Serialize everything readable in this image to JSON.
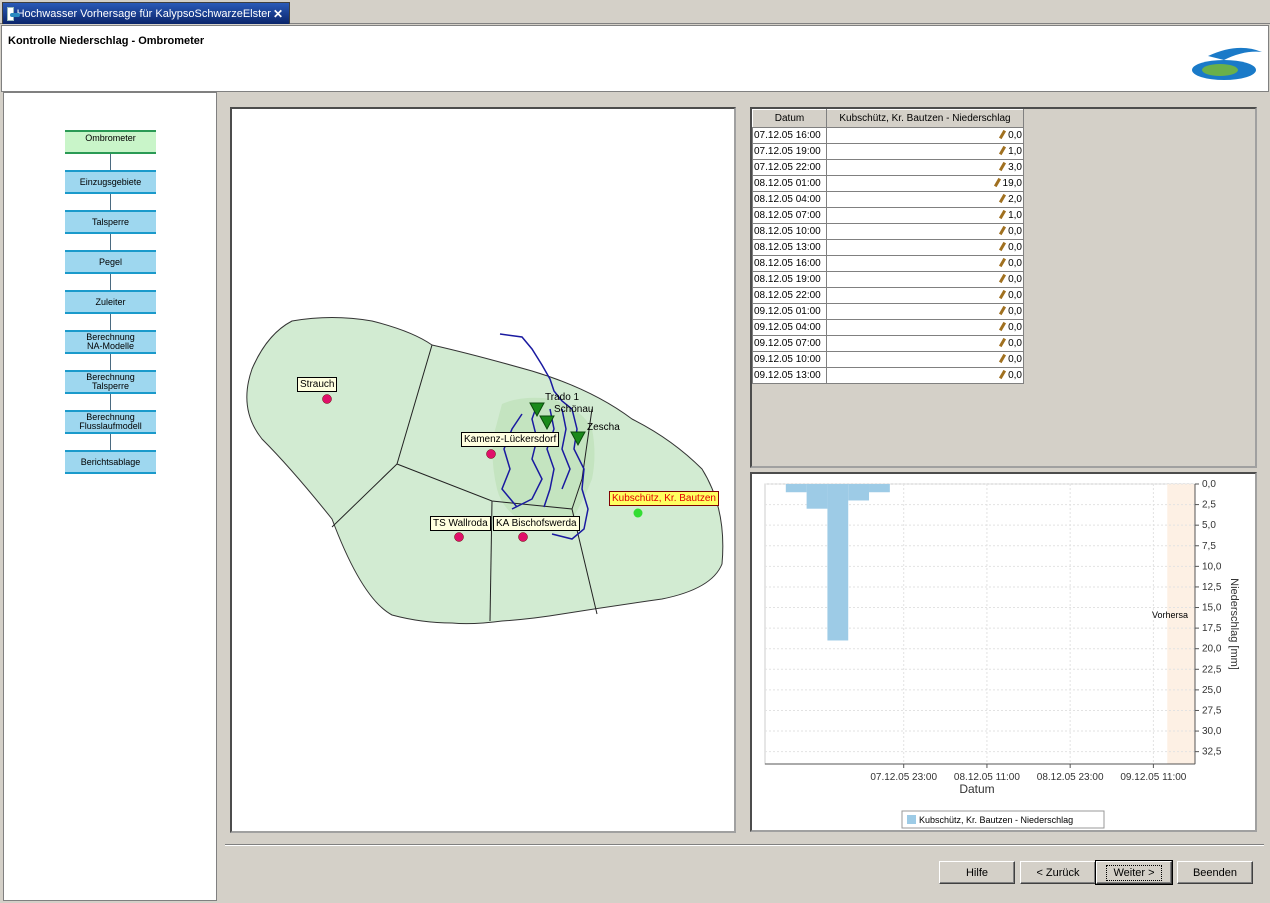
{
  "window": {
    "tab_title": "Hochwasser Vorhersage für KalypsoSchwarzeElster",
    "tab_icon": "app-icon",
    "close_icon": "close-icon"
  },
  "header": {
    "page_title": "Kontrolle Niederschlag - Ombrometer",
    "logo_icon": "wave-logo-icon"
  },
  "workflow": {
    "steps": [
      {
        "label_1": "Ombrometer",
        "label_2": "",
        "active": true
      },
      {
        "label_1": "Einzugsgebiete",
        "label_2": "",
        "active": false
      },
      {
        "label_1": "Talsperre",
        "label_2": "",
        "active": false
      },
      {
        "label_1": "Pegel",
        "label_2": "",
        "active": false
      },
      {
        "label_1": "Zuleiter",
        "label_2": "",
        "active": false
      },
      {
        "label_1": "Berechnung",
        "label_2": "NA-Modelle",
        "active": false
      },
      {
        "label_1": "Berechnung",
        "label_2": "Talsperre",
        "active": false
      },
      {
        "label_1": "Berechnung",
        "label_2": "Flusslaufmodell",
        "active": false
      },
      {
        "label_1": "Berichtsablage",
        "label_2": "",
        "active": false
      }
    ]
  },
  "map": {
    "stations": [
      {
        "name": "Strauch",
        "selected": false
      },
      {
        "name": "Kamenz-Lückersdorf",
        "selected": false
      },
      {
        "name": "TS Wallroda",
        "selected": false
      },
      {
        "name": "KA Bischofswerda",
        "selected": false
      },
      {
        "name": "Kubschütz, Kr. Bautzen",
        "selected": true
      }
    ],
    "gauges": [
      "Trado 1",
      "Schönau",
      "Zescha"
    ],
    "colors": {
      "catchment_fill": "#d2ebd2",
      "station": "#e0106a",
      "selected_station": "#33dd33",
      "gauge": "#1a8a1a",
      "river": "#1a1aa0"
    }
  },
  "table": {
    "col_date": "Datum",
    "col_value": "Kubschütz, Kr. Bautzen - Niederschlag",
    "rows": [
      {
        "date": "07.12.05 16:00",
        "value": "0,0"
      },
      {
        "date": "07.12.05 19:00",
        "value": "1,0"
      },
      {
        "date": "07.12.05 22:00",
        "value": "3,0"
      },
      {
        "date": "08.12.05 01:00",
        "value": "19,0"
      },
      {
        "date": "08.12.05 04:00",
        "value": "2,0"
      },
      {
        "date": "08.12.05 07:00",
        "value": "1,0"
      },
      {
        "date": "08.12.05 10:00",
        "value": "0,0"
      },
      {
        "date": "08.12.05 13:00",
        "value": "0,0"
      },
      {
        "date": "08.12.05 16:00",
        "value": "0,0"
      },
      {
        "date": "08.12.05 19:00",
        "value": "0,0"
      },
      {
        "date": "08.12.05 22:00",
        "value": "0,0"
      },
      {
        "date": "09.12.05 01:00",
        "value": "0,0"
      },
      {
        "date": "09.12.05 04:00",
        "value": "0,0"
      },
      {
        "date": "09.12.05 07:00",
        "value": "0,0"
      },
      {
        "date": "09.12.05 10:00",
        "value": "0,0"
      },
      {
        "date": "09.12.05 13:00",
        "value": "0,0"
      }
    ]
  },
  "chart_data": {
    "type": "bar",
    "xlabel": "Datum",
    "ylabel": "Niederschlag [mm]",
    "x_ticks": [
      "07.12.05 23:00",
      "08.12.05 11:00",
      "08.12.05 23:00",
      "09.12.05 11:00"
    ],
    "y_ticks": [
      "0,0",
      "2,5",
      "5,0",
      "7,5",
      "10,0",
      "12,5",
      "15,0",
      "17,5",
      "20,0",
      "22,5",
      "25,0",
      "27,5",
      "30,0",
      "32,5"
    ],
    "ylim": [
      0,
      34
    ],
    "y_inverted": true,
    "y_axis_side": "right",
    "forecast_label": "Vorhersa",
    "legend": "Kubschütz, Kr. Bautzen - Niederschlag",
    "bar_color": "#9dcbe6",
    "forecast_color": "#fdf0e4",
    "x_unit": "hours",
    "x_tick_hours": [
      11,
      23,
      35,
      47
    ],
    "xlim_hours": [
      -9,
      53
    ],
    "bars": [
      {
        "start_hour": -6,
        "end_hour": -3,
        "value": 1.0
      },
      {
        "start_hour": -3,
        "end_hour": 0,
        "value": 3.0
      },
      {
        "start_hour": 0,
        "end_hour": 3,
        "value": 19.0
      },
      {
        "start_hour": 3,
        "end_hour": 6,
        "value": 2.0
      },
      {
        "start_hour": 6,
        "end_hour": 9,
        "value": 1.0
      }
    ],
    "forecast_start_hour": 49
  },
  "buttons": {
    "help": "Hilfe",
    "back": "< Zurück",
    "next": "Weiter >",
    "finish": "Beenden"
  }
}
